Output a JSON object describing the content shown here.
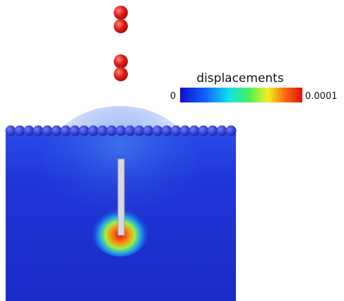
{
  "colorbar": {
    "title": "displacements",
    "min_label": "0",
    "max_label": "0.0001"
  }
}
